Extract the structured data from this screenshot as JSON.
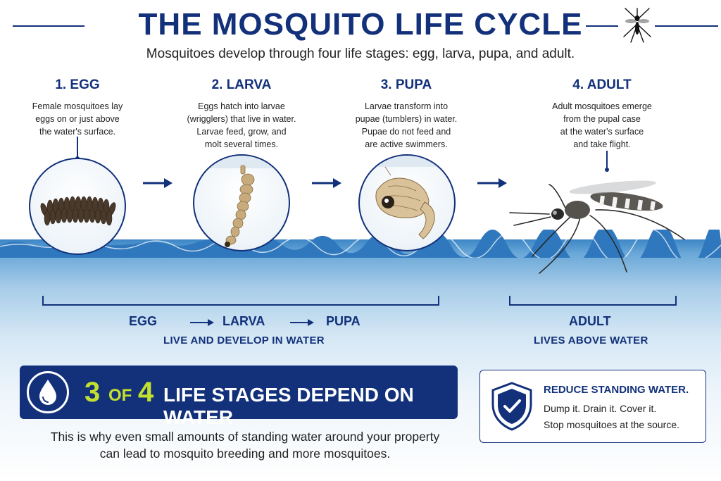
{
  "header": {
    "title": "THE MOSQUITO LIFE CYCLE",
    "subtitle": "Mosquitoes develop through four life stages: egg, larva, pupa, and adult."
  },
  "stages": [
    {
      "title": "1. EGG",
      "lines": [
        "Female mosquitoes lay",
        "eggs on or just above",
        "the water's surface."
      ]
    },
    {
      "title": "2. LARVA",
      "lines": [
        "Eggs hatch into larvae",
        "(wrigglers) that live in water.",
        "Larvae feed, grow, and",
        "molt several times."
      ]
    },
    {
      "title": "3. PUPA",
      "lines": [
        "Larvae transform into",
        "pupae (tumblers) in water.",
        "Pupae do not feed and",
        "are active swimmers."
      ]
    },
    {
      "title": "4. ADULT",
      "lines": [
        "Adult mosquitoes emerge",
        "from the pupal case",
        "at the water's surface",
        "and take flight."
      ]
    }
  ],
  "flow": {
    "water_stages": [
      "EGG",
      "LARVA",
      "PUPA"
    ],
    "water_caption": "LIVE AND DEVELOP IN WATER",
    "adult_stage": "ADULT",
    "adult_caption": "LIVES ABOVE WATER"
  },
  "banner": {
    "num_a": "3",
    "of": "OF",
    "num_b": "4",
    "text": "LIFE STAGES DEPEND ON WATER"
  },
  "note": {
    "line1": "This is why even small amounts of standing water around your property",
    "line2": "can lead to mosquito breeding and more mosquitoes."
  },
  "tip": {
    "title": "REDUCE STANDING WATER.",
    "line1": "Dump it. Drain it. Cover it.",
    "line2": "Stop mosquitoes at the source."
  },
  "icons": [
    "mosquito-icon",
    "arrow-right-icon",
    "water-drop-icon",
    "shield-check-icon"
  ],
  "colors": {
    "navy": "#12317a",
    "lime": "#c4e02e",
    "water": "#3d86c6"
  }
}
